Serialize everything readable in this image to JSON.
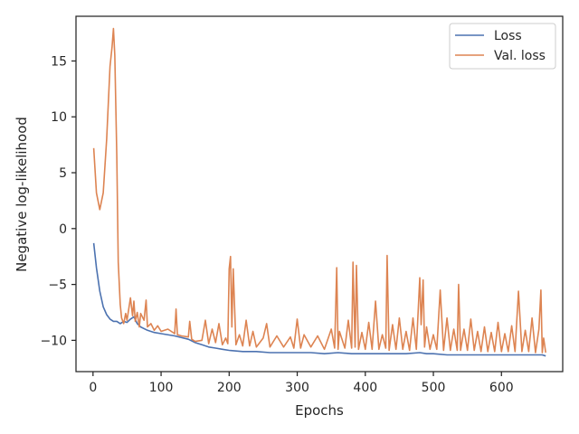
{
  "chart_data": {
    "type": "line",
    "title": "",
    "xlabel": "Epochs",
    "ylabel": "Negative log-likelihood",
    "xlim": [
      -25,
      690
    ],
    "ylim": [
      -12.8,
      19
    ],
    "xticks": [
      0,
      100,
      200,
      300,
      400,
      500,
      600
    ],
    "yticks": [
      -10,
      -5,
      0,
      5,
      10,
      15
    ],
    "grid": false,
    "legend": {
      "position": "top-right",
      "entries": [
        "Loss",
        "Val. loss"
      ]
    },
    "colors": {
      "Loss": "#4c72b0",
      "Val. loss": "#dd8452",
      "axes": "#262626"
    },
    "series": [
      {
        "name": "Loss",
        "x": [
          1,
          5,
          10,
          15,
          20,
          25,
          30,
          35,
          40,
          45,
          50,
          55,
          60,
          65,
          70,
          80,
          90,
          100,
          120,
          140,
          150,
          160,
          170,
          180,
          190,
          200,
          220,
          240,
          260,
          280,
          300,
          320,
          340,
          360,
          380,
          400,
          420,
          440,
          460,
          480,
          490,
          500,
          520,
          540,
          560,
          580,
          600,
          620,
          640,
          660,
          665
        ],
        "y": [
          -1.3,
          -3.5,
          -5.6,
          -7.0,
          -7.7,
          -8.1,
          -8.3,
          -8.3,
          -8.5,
          -8.3,
          -8.4,
          -8.1,
          -7.9,
          -8.5,
          -8.8,
          -9.1,
          -9.3,
          -9.4,
          -9.6,
          -9.9,
          -10.2,
          -10.4,
          -10.6,
          -10.7,
          -10.8,
          -10.9,
          -11.0,
          -11.0,
          -11.1,
          -11.1,
          -11.1,
          -11.1,
          -11.2,
          -11.1,
          -11.2,
          -11.2,
          -11.2,
          -11.2,
          -11.2,
          -11.1,
          -11.2,
          -11.2,
          -11.3,
          -11.3,
          -11.3,
          -11.3,
          -11.3,
          -11.3,
          -11.3,
          -11.3,
          -11.4
        ]
      },
      {
        "name": "Val. loss",
        "x": [
          1,
          5,
          10,
          15,
          20,
          25,
          28,
          30,
          32,
          35,
          37,
          40,
          42,
          45,
          48,
          50,
          55,
          58,
          60,
          62,
          65,
          68,
          70,
          75,
          78,
          80,
          85,
          90,
          95,
          100,
          110,
          120,
          122,
          124,
          130,
          140,
          142,
          145,
          150,
          160,
          165,
          170,
          175,
          180,
          185,
          190,
          195,
          198,
          200,
          202,
          204,
          206,
          210,
          215,
          220,
          225,
          230,
          235,
          240,
          250,
          255,
          260,
          270,
          280,
          290,
          295,
          300,
          305,
          310,
          320,
          330,
          340,
          350,
          355,
          358,
          360,
          362,
          370,
          375,
          380,
          382,
          385,
          387,
          390,
          395,
          400,
          405,
          410,
          415,
          420,
          425,
          430,
          432,
          435,
          440,
          445,
          450,
          455,
          460,
          465,
          470,
          475,
          480,
          482,
          485,
          487,
          490,
          495,
          500,
          505,
          510,
          515,
          520,
          525,
          530,
          535,
          537,
          540,
          545,
          550,
          555,
          560,
          565,
          570,
          575,
          580,
          585,
          590,
          595,
          600,
          605,
          610,
          615,
          620,
          625,
          630,
          635,
          640,
          645,
          650,
          655,
          658,
          660,
          662,
          665
        ],
        "y": [
          7.2,
          3.2,
          1.7,
          3.2,
          8.0,
          14.5,
          16.3,
          17.9,
          15.5,
          6.5,
          -3.0,
          -6.8,
          -8.0,
          -8.5,
          -7.6,
          -8.2,
          -6.2,
          -7.8,
          -6.5,
          -8.3,
          -7.5,
          -8.8,
          -7.6,
          -8.2,
          -6.4,
          -8.8,
          -8.5,
          -9.1,
          -8.7,
          -9.2,
          -9.0,
          -9.4,
          -7.2,
          -9.5,
          -9.6,
          -9.7,
          -8.3,
          -9.9,
          -10.1,
          -10.0,
          -8.2,
          -10.3,
          -9.0,
          -10.2,
          -8.5,
          -10.4,
          -9.8,
          -10.3,
          -3.6,
          -2.5,
          -8.8,
          -3.6,
          -10.4,
          -9.5,
          -10.5,
          -8.2,
          -10.5,
          -9.2,
          -10.6,
          -9.8,
          -8.5,
          -10.6,
          -9.6,
          -10.6,
          -9.7,
          -10.7,
          -8.1,
          -10.7,
          -9.5,
          -10.6,
          -9.6,
          -10.8,
          -9.0,
          -10.7,
          -3.5,
          -10.8,
          -9.2,
          -10.7,
          -8.2,
          -10.7,
          -3.0,
          -10.6,
          -3.3,
          -10.8,
          -9.3,
          -10.8,
          -8.4,
          -10.8,
          -6.5,
          -10.8,
          -9.5,
          -10.7,
          -2.4,
          -10.9,
          -8.6,
          -10.8,
          -8.0,
          -10.8,
          -9.2,
          -10.9,
          -8.0,
          -10.8,
          -4.4,
          -8.6,
          -4.6,
          -10.6,
          -8.8,
          -10.8,
          -9.5,
          -10.8,
          -5.5,
          -10.9,
          -8.0,
          -10.9,
          -9.0,
          -10.9,
          -5.0,
          -10.9,
          -9.0,
          -10.9,
          -8.1,
          -10.9,
          -9.2,
          -11.0,
          -8.8,
          -11.0,
          -9.3,
          -11.0,
          -8.4,
          -11.0,
          -9.4,
          -11.0,
          -8.7,
          -11.0,
          -5.6,
          -11.0,
          -9.1,
          -11.0,
          -8.0,
          -11.1,
          -9.0,
          -5.5,
          -11.1,
          -9.8,
          -11.1
        ]
      }
    ]
  }
}
